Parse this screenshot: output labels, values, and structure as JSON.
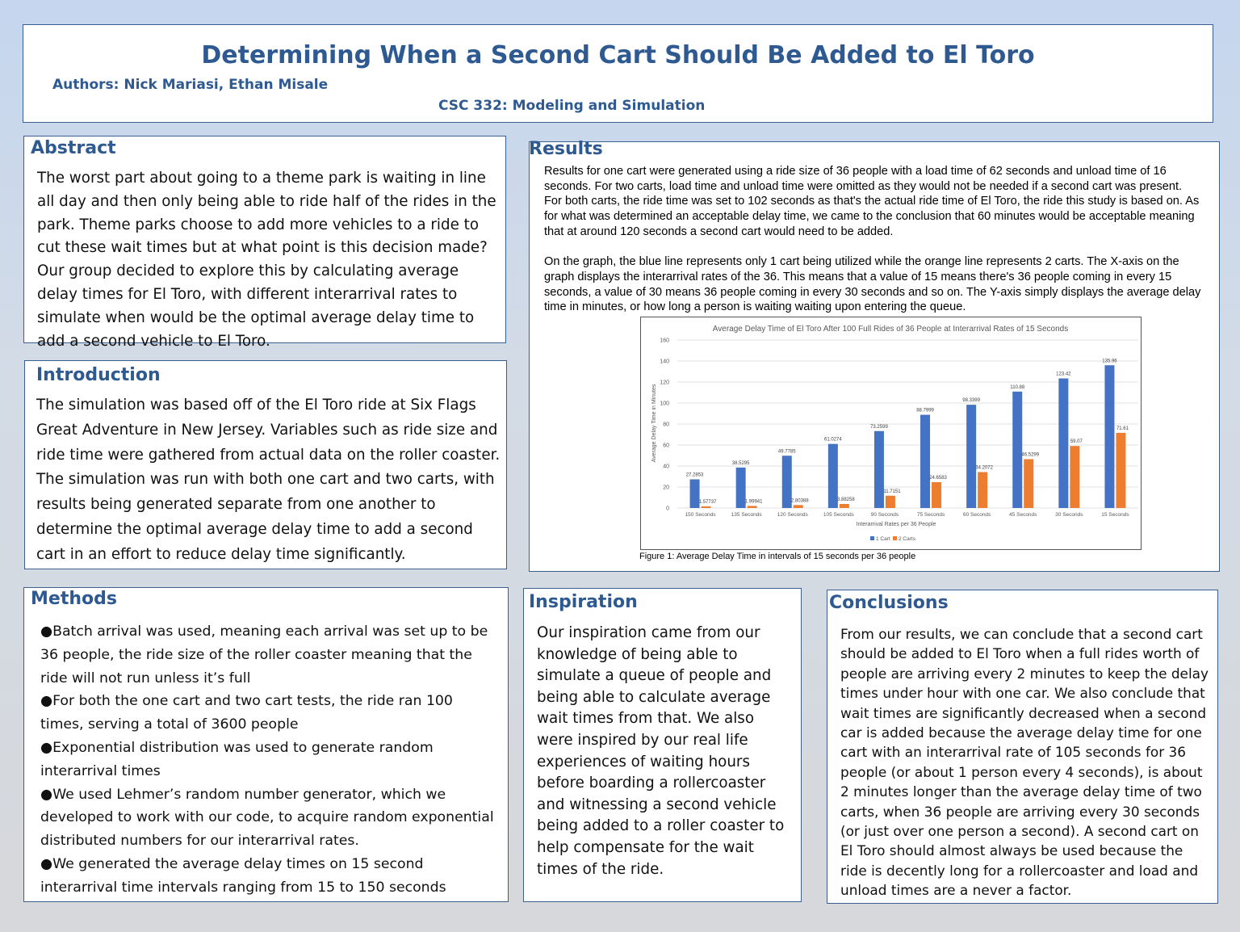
{
  "header": {
    "title": "Determining When a Second Cart Should Be Added to El Toro",
    "authors": "Authors: Nick Mariasi, Ethan Misale",
    "course": "CSC 332: Modeling and Simulation"
  },
  "abstract": {
    "title": "Abstract",
    "text": "The worst part about going to a theme park is waiting in line all day and then only being able to ride half of the rides in the park. Theme parks choose to add more vehicles to a ride to cut these wait times but at what point is this decision made? Our group decided to explore this by calculating average delay times for El Toro, with different interarrival rates to simulate when would be the optimal average delay time to add a second vehicle to El Toro."
  },
  "introduction": {
    "title": "Introduction",
    "text": "The simulation was based off of the El Toro ride at Six Flags Great Adventure in New Jersey. Variables such as ride size and ride time were gathered from actual data on the roller coaster. The simulation was run with both one cart and two carts, with results being generated separate from one another to determine the optimal average delay time to add a second cart in an effort to reduce delay time significantly."
  },
  "results": {
    "title": "Results",
    "paragraph1": "Results for one cart were generated using a ride size of 36 people with a load time of 62 seconds and unload time of 16 seconds. For two carts, load time and unload time were omitted as they would not be needed if a second cart was present. For both carts, the ride time was set to 102 seconds as that's the actual ride time of El Toro, the ride this study is based on. As for what was determined an acceptable delay time, we came to the conclusion that 60 minutes would be acceptable meaning that at around 120 seconds a second cart would need to be added.",
    "paragraph2": "On the graph, the blue line represents only 1 cart being utilized while the orange line represents 2 carts. The X-axis on the graph displays the interarrival rates of the 36. This means that a value of 15 means there's 36 people coming in every 15 seconds, a value of 30 means 36 people coming in every 30 seconds and so on. The Y-axis simply displays the average delay time in minutes, or how long a person is waiting waiting upon entering the queue.",
    "figure_caption": "Figure 1: Average Delay Time in intervals of 15 seconds per 36 people"
  },
  "chart_data": {
    "type": "bar",
    "title": "Average Delay Time of El Toro After 100 Full Rides of 36 People at Interarrival Rates of 15 Seconds",
    "xlabel": "Interarrival Rates per 36 People",
    "ylabel": "Average Delay Time in Minutes",
    "ylim": [
      0,
      160
    ],
    "yticks": [
      "0",
      "20",
      "40",
      "60",
      "80",
      "100",
      "120",
      "140",
      "160"
    ],
    "grid": true,
    "legend_position": "bottom",
    "categories": [
      "150 Seconds",
      "135 Seconds",
      "120 Seconds",
      "105 Seconds",
      "90 Seconds",
      "75 Seconds",
      "60 Seconds",
      "45 Seconds",
      "30 Seconds",
      "15 Seconds"
    ],
    "series": [
      {
        "name": "1 Cart",
        "color": "#4472c4",
        "values": [
          27.2853,
          38.5295,
          49.7785,
          61.0274,
          73.2599,
          88.7999,
          98.3399,
          110.88,
          123.42,
          135.96
        ],
        "labels": [
          "27.2853",
          "38.5295",
          "49.7785",
          "61.0274",
          "73.2599",
          "88.7999",
          "98.3399",
          "110.88",
          "123.42",
          "135.96"
        ]
      },
      {
        "name": "2 Carts",
        "color": "#ed7d31",
        "values": [
          1.57737,
          1.99941,
          2.80388,
          3.88258,
          11.7151,
          24.6583,
          34.2072,
          46.5299,
          59.07,
          71.61
        ],
        "labels": [
          "1.57737",
          "1.99941",
          "2.80388",
          "3.88258",
          "11.7151",
          "24.6583",
          "34.2072",
          "46.5299",
          "59.07",
          "71.61"
        ]
      }
    ]
  },
  "methods": {
    "title": "Methods",
    "bullet": "●",
    "items": [
      "Batch arrival was used, meaning each arrival was set up to be 36 people, the ride size of the roller coaster meaning that the ride will not run unless it’s full",
      "For both the one cart and two cart tests, the ride ran 100 times, serving a total of 3600 people",
      "Exponential distribution was used to generate random interarrival times",
      "We used Lehmer’s random number generator, which we developed to work with our code, to acquire random exponential distributed numbers for our interarrival rates.",
      "We generated the average delay times on 15 second interarrival time intervals ranging from 15 to 150 seconds"
    ]
  },
  "inspiration": {
    "title": "Inspiration",
    "text": "Our inspiration came from our knowledge of being able to simulate a queue of people and being able to calculate average wait times from that. We also were inspired by our real life experiences of waiting hours before boarding a rollercoaster and witnessing a second vehicle being added to a roller coaster to help compensate for the wait times of the ride."
  },
  "conclusions": {
    "title": "Conclusions",
    "text": "From our results, we can conclude that a second cart should be added to El Toro when a full rides worth of people are arriving every 2 minutes to keep the delay times under hour with one car. We also conclude that wait times are significantly decreased when a second car is added because the average delay time for one cart with an interarrival rate of 105 seconds for 36 people (or about 1 person every 4 seconds), is about 2 minutes longer than the average delay time of two carts, when 36 people are arriving every 30 seconds (or just over one person a second). A second cart on El Toro should almost always be used because the ride is decently long for a rollercoaster and load and unload times are a never a factor."
  }
}
